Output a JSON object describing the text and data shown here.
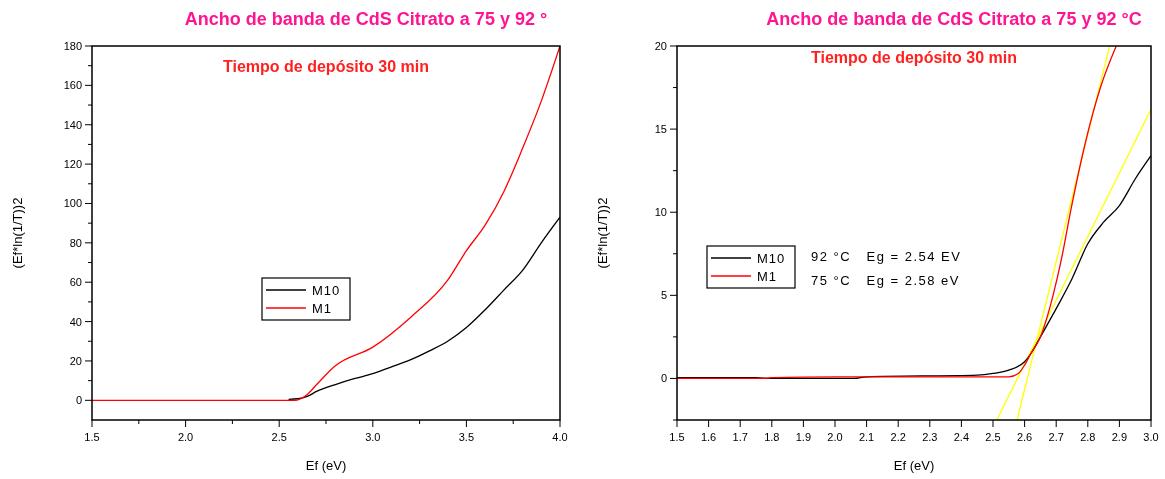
{
  "chart_data": [
    {
      "type": "line",
      "title": "Ancho de banda de CdS Citrato a 75 y 92 °",
      "annotations": [
        "Tiempo de depósito 30 min"
      ],
      "xlabel": "Ef (eV)",
      "ylabel": "(Ef*ln(1/T))2",
      "xlim": [
        1.5,
        4.0
      ],
      "ylim": [
        -10,
        180
      ],
      "xticks": [
        1.5,
        {
          "value": 1.75,
          "label": null
        },
        {
          "value": 2,
          "label": "2.0"
        },
        {
          "value": 2.25,
          "label": null
        },
        2.5,
        {
          "value": 2.75,
          "label": null
        },
        {
          "value": 3,
          "label": "3.0"
        },
        {
          "value": 3.25,
          "label": null
        },
        3.5,
        {
          "value": 3.75,
          "label": null
        },
        {
          "value": 4,
          "label": "4.0"
        }
      ],
      "yticks": [
        0,
        {
          "value": 10,
          "label": null
        },
        20,
        {
          "value": 30,
          "label": null
        },
        40,
        {
          "value": 50,
          "label": null
        },
        60,
        {
          "value": 70,
          "label": null
        },
        80,
        {
          "value": 90,
          "label": null
        },
        100,
        {
          "value": 110,
          "label": null
        },
        120,
        {
          "value": 130,
          "label": null
        },
        140,
        {
          "value": 150,
          "label": null
        },
        160,
        {
          "value": 170,
          "label": null
        },
        180
      ],
      "legend": "center",
      "grid": false,
      "marker": "none",
      "line_style": "solid",
      "series": [
        {
          "name": "M10",
          "color": "#000000",
          "x": [
            2.55,
            2.6,
            2.65,
            2.7,
            2.8,
            2.9,
            3.0,
            3.1,
            3.2,
            3.3,
            3.4,
            3.5,
            3.6,
            3.7,
            3.8,
            3.9,
            4.0
          ],
          "values": [
            0.5,
            0.8,
            2,
            4.5,
            8,
            11,
            13.5,
            17,
            20.5,
            25,
            30,
            37,
            46,
            56,
            66,
            80,
            93
          ]
        },
        {
          "name": "M1",
          "color": "#ff0000",
          "x": [
            1.5,
            2.0,
            2.5,
            2.58,
            2.65,
            2.7,
            2.8,
            3.0,
            3.2,
            3.4,
            3.5,
            3.6,
            3.7,
            3.8,
            3.9,
            4.0
          ],
          "values": [
            0,
            0,
            0,
            0,
            3,
            8,
            17.5,
            27,
            42,
            61,
            76,
            89,
            106,
            128,
            152,
            180
          ]
        }
      ]
    },
    {
      "type": "line",
      "title": "Ancho de banda de CdS Citrato a 75 y 92 °C",
      "annotations": [
        "Tiempo de depósito 30 min",
        "92 °C   Eg = 2.54 EV",
        "75 °C   Eg = 2.58 eV"
      ],
      "xlabel": "Ef (eV)",
      "ylabel": "(Ef*ln(1/T))2",
      "xlim": [
        1.5,
        3.0
      ],
      "ylim": [
        -2.5,
        20
      ],
      "xticks": [
        1.5,
        1.6,
        1.7,
        1.8,
        1.9,
        {
          "value": 2,
          "label": "2.0"
        },
        2.1,
        2.2,
        2.3,
        2.4,
        2.5,
        2.6,
        2.7,
        2.8,
        2.9,
        {
          "value": 3,
          "label": "3.0"
        }
      ],
      "yticks": [
        {
          "value": -2.5,
          "label": null
        },
        0,
        {
          "value": 2.5,
          "label": null
        },
        5,
        {
          "value": 7.5,
          "label": null
        },
        10,
        {
          "value": 12.5,
          "label": null
        },
        15,
        {
          "value": 17.5,
          "label": null
        },
        20
      ],
      "legend": "left",
      "grid": false,
      "marker": "none",
      "line_style": "solid",
      "series": [
        {
          "name": "M10",
          "color": "#000000",
          "x": [
            1.5,
            1.75,
            1.8,
            2.06,
            2.1,
            2.45,
            2.5,
            2.55,
            2.6,
            2.62,
            2.65,
            2.7,
            2.75,
            2.8,
            2.85,
            2.9,
            2.95,
            3.0
          ],
          "values": [
            0.05,
            0.05,
            0,
            0,
            0.1,
            0.2,
            0.3,
            0.5,
            1.0,
            1.5,
            2.5,
            4.2,
            6.0,
            8.1,
            9.4,
            10.4,
            12.0,
            13.4
          ]
        },
        {
          "name": "M1",
          "color": "#ff0000",
          "x": [
            1.5,
            1.77,
            1.8,
            2.0,
            2.45,
            2.55,
            2.58,
            2.6,
            2.62,
            2.65,
            2.69,
            2.72,
            2.745,
            2.79,
            2.84,
            2.89
          ],
          "values": [
            0,
            0,
            0.05,
            0.1,
            0.1,
            0.1,
            0.3,
            0.8,
            1.5,
            2.5,
            5,
            7.5,
            10,
            14,
            17.5,
            20
          ]
        },
        {
          "color": "#ffff00",
          "x": [
            2.512,
            3.0
          ],
          "values": [
            -2.5,
            16.2
          ]
        },
        {
          "color": "#ffff00",
          "x": [
            2.576,
            2.869
          ],
          "values": [
            -2.5,
            20
          ]
        }
      ]
    }
  ]
}
